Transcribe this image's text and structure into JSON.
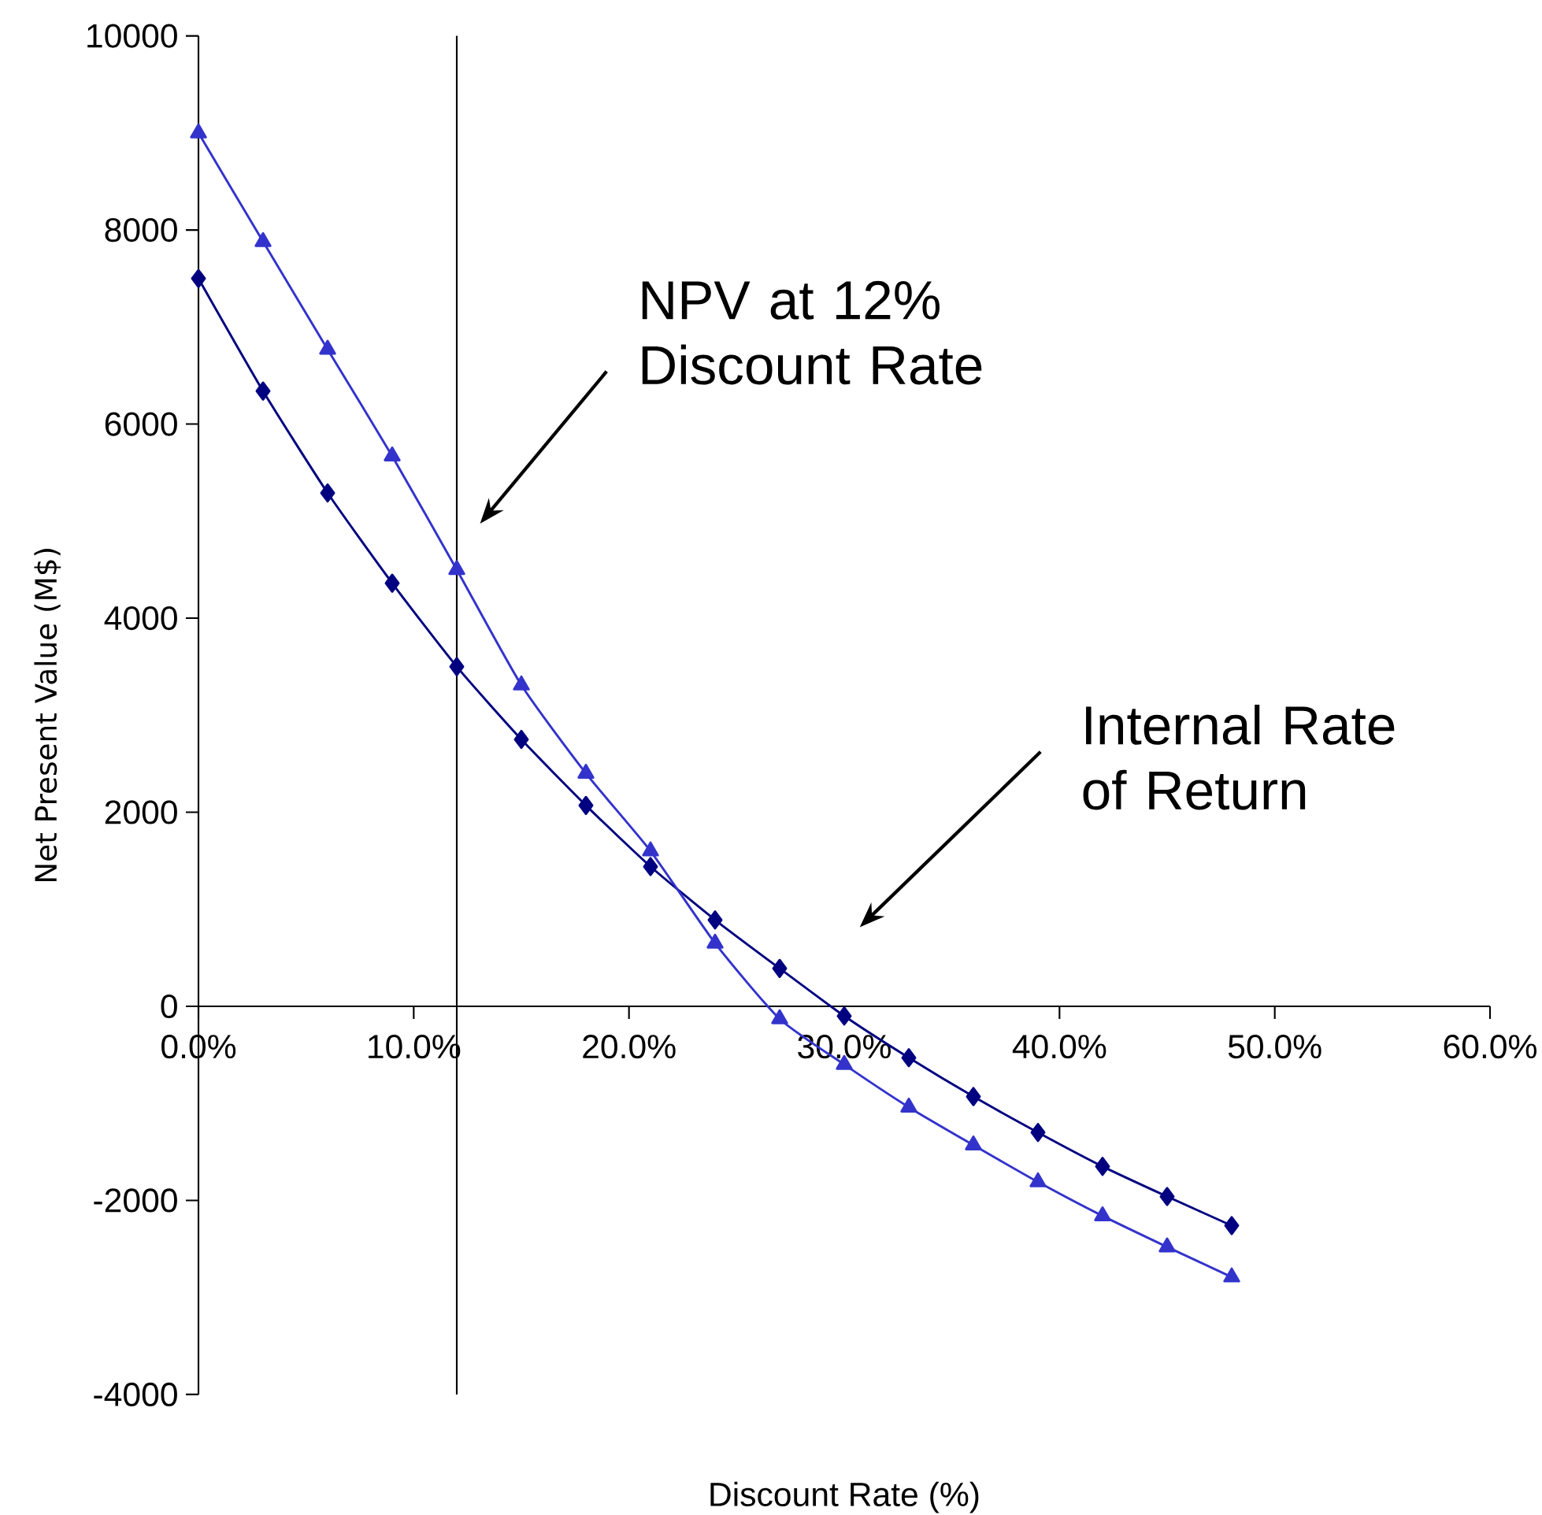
{
  "chart_data": {
    "type": "line",
    "xlabel": "Discount Rate (%)",
    "ylabel": "Net Present Value (M$)",
    "x": [
      0,
      3,
      6,
      9,
      12,
      15,
      18,
      21,
      24,
      27,
      30,
      33,
      36,
      39,
      42,
      45,
      48
    ],
    "series": [
      {
        "color": "#000080",
        "marker": "diamond",
        "values": [
          7500,
          6340,
          5290,
          4360,
          3500,
          2750,
          2070,
          1440,
          890,
          390,
          -100,
          -530,
          -930,
          -1300,
          -1650,
          -1960,
          -2260
        ]
      },
      {
        "color": "#3333cc",
        "marker": "triangle",
        "values": [
          9000,
          7880,
          6770,
          5670,
          4500,
          3310,
          2400,
          1600,
          650,
          -130,
          -600,
          -1040,
          -1430,
          -1810,
          -2160,
          -2480,
          -2790
        ]
      }
    ],
    "xlim": [
      0,
      60
    ],
    "ylim": [
      -4000,
      10000
    ],
    "xticks": [
      {
        "value": 0,
        "label": "0.0%"
      },
      {
        "value": 10,
        "label": "10.0%"
      },
      {
        "value": 20,
        "label": "20.0%"
      },
      {
        "value": 30,
        "label": "30.0%"
      },
      {
        "value": 40,
        "label": "40.0%"
      },
      {
        "value": 50,
        "label": "50.0%"
      },
      {
        "value": 60,
        "label": "60.0%"
      }
    ],
    "yticks": [
      -4000,
      -2000,
      0,
      2000,
      4000,
      6000,
      8000,
      10000
    ],
    "ref_lines": [
      {
        "axis": "x",
        "value": 12,
        "color": "#000000"
      }
    ],
    "annotations": [
      "NPV at 12% Discount Rate",
      "Internal Rate of Return"
    ]
  }
}
